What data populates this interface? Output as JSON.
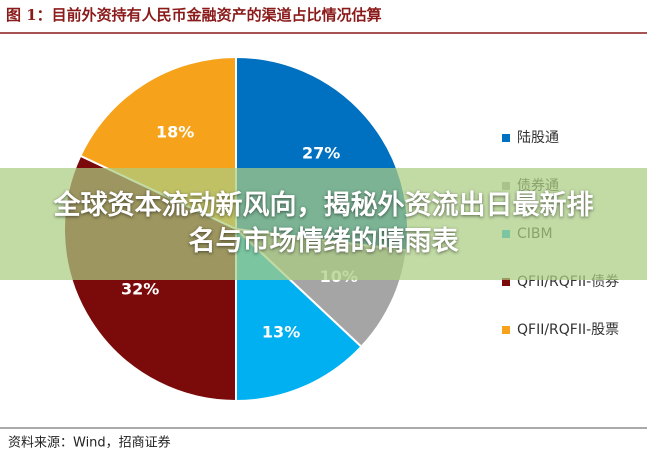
{
  "chart_data": {
    "type": "pie",
    "title": "图 1：目前外资持有人民币金融资产的渠道占比情况估算",
    "categories": [
      "陆股通",
      "债券通",
      "CIBM",
      "QFII/RQFII-债券",
      "QFII/RQFII-股票"
    ],
    "values": [
      27,
      10,
      13,
      32,
      18
    ],
    "value_labels": [
      "27%",
      "10%",
      "13%",
      "32%",
      "18%"
    ],
    "colors": [
      "#0070c0",
      "#a5a5a5",
      "#00b0f0",
      "#7b0a0a",
      "#f7a21b"
    ],
    "legend": "right",
    "source": "资料来源：Wind，招商证券"
  },
  "overlay": {
    "headline": "全球资本流动新风向，揭秘外资流出日最新排名与市场情绪的晴雨表"
  }
}
